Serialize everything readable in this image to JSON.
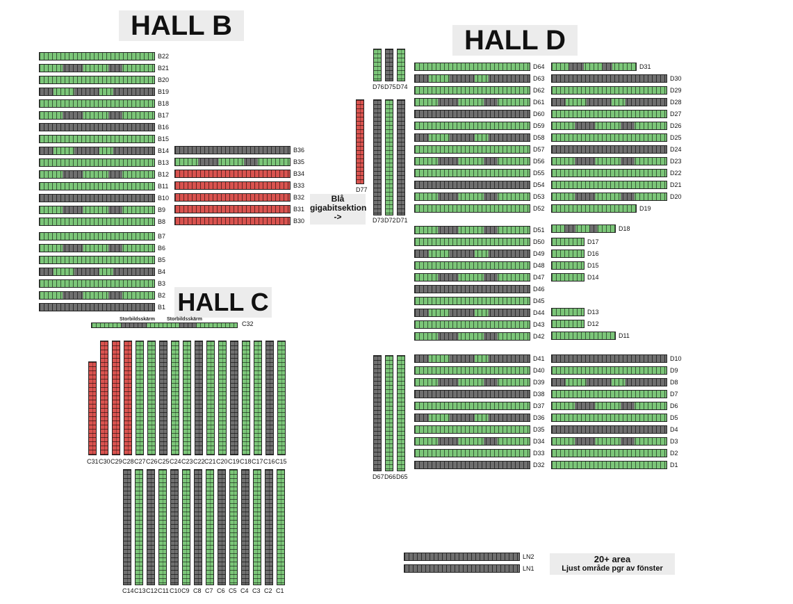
{
  "halls": {
    "b": "HALL B",
    "c": "HALL C",
    "d": "HALL D"
  },
  "colors": {
    "available": "#7cc679",
    "booked": "#6f6f6f",
    "reserved": "#d9534f"
  },
  "notes": {
    "bla_line1": "Blå",
    "bla_line2": "gigabitsektion",
    "bla_line3": "->",
    "area_title": "20+ area",
    "area_sub": "Ljust område pgr av fönster",
    "screen_left": "Storbildsskärm",
    "screen_right": "Storbildsskärm"
  },
  "rows": {
    "hall_b": [
      "B22",
      "B21",
      "B20",
      "B19",
      "B18",
      "B17",
      "B16",
      "B15",
      "B14",
      "B13",
      "B12",
      "B11",
      "B10",
      "B9",
      "B8",
      "B7",
      "B6",
      "B5",
      "B4",
      "B3",
      "B2",
      "B1"
    ],
    "hall_b_right": [
      "B36",
      "B35",
      "B34",
      "B33",
      "B32",
      "B31",
      "B30"
    ],
    "hall_c_top": [
      "C31",
      "C30",
      "C29",
      "C28",
      "C27",
      "C26",
      "C25",
      "C24",
      "C23",
      "C22",
      "C21",
      "C20",
      "C19",
      "C18",
      "C17",
      "C16",
      "C15"
    ],
    "hall_c_bottom": [
      "C14",
      "C13",
      "C12",
      "C11",
      "C10",
      "C9",
      "C8",
      "C7",
      "C6",
      "C5",
      "C4",
      "C3",
      "C2",
      "C1"
    ],
    "c32": "C32",
    "hall_d_top_columns": [
      "D76",
      "D75",
      "D74"
    ],
    "d77": "D77",
    "hall_d_mid_columns": [
      "D73",
      "D72",
      "D71"
    ],
    "hall_d_low_columns": [
      "D67",
      "D66",
      "D65"
    ],
    "hall_d_left_upper": [
      "D64",
      "D63",
      "D62",
      "D61",
      "D60",
      "D59",
      "D58",
      "D57",
      "D56",
      "D55",
      "D54",
      "D53",
      "D52"
    ],
    "hall_d_right_upper": [
      "D31",
      "D30",
      "D29",
      "D28",
      "D27",
      "D26",
      "D25",
      "D24",
      "D23",
      "D22",
      "D21",
      "D20",
      "D19"
    ],
    "hall_d_left_middle": [
      "D51",
      "D50",
      "D49",
      "D48",
      "D47",
      "D46",
      "D45",
      "D44",
      "D43",
      "D42"
    ],
    "hall_d_right_middle": [
      "D18",
      "D17",
      "D16",
      "D15",
      "D14",
      "D13",
      "D12",
      "D11"
    ],
    "hall_d_left_lower": [
      "D41",
      "D40",
      "D39",
      "D38",
      "D37",
      "D36",
      "D35",
      "D34",
      "D33",
      "D32"
    ],
    "hall_d_right_lower": [
      "D10",
      "D9",
      "D8",
      "D7",
      "D6",
      "D5",
      "D4",
      "D3",
      "D2",
      "D1"
    ],
    "ln": [
      "LN2",
      "LN1"
    ]
  }
}
